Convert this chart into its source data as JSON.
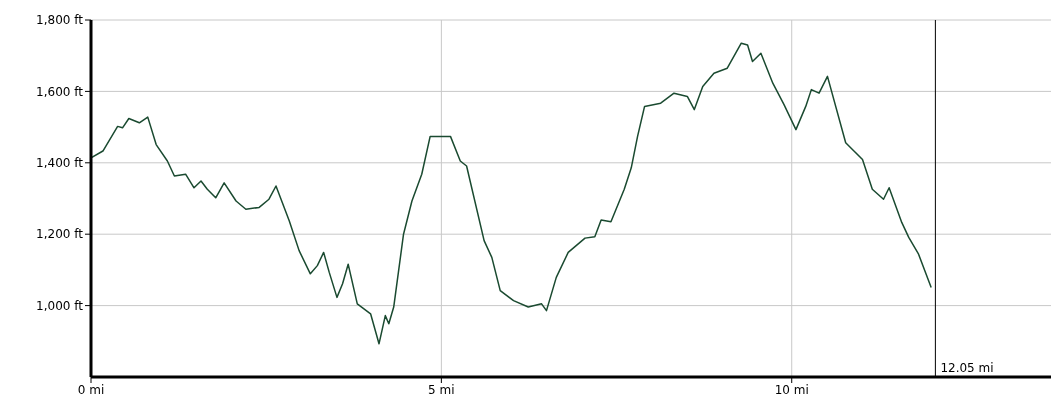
{
  "chart_data": {
    "type": "line",
    "xlim": [
      0,
      13.7
    ],
    "xticks": [
      {
        "value": 0,
        "label": "0 mi"
      },
      {
        "value": 5,
        "label": "5 mi"
      },
      {
        "value": 10,
        "label": "10 mi"
      }
    ],
    "ylim": [
      800,
      1800
    ],
    "yticks": [
      {
        "value": 1000,
        "label": "1,000 ft"
      },
      {
        "value": 1200,
        "label": "1,200 ft"
      },
      {
        "value": 1400,
        "label": "1,400 ft"
      },
      {
        "value": 1600,
        "label": "1,600 ft"
      },
      {
        "value": 1800,
        "label": "1,800 ft"
      }
    ],
    "grid": true,
    "marker": "none",
    "line_style": "solid",
    "ref_lines": [
      {
        "axis": "x",
        "value": 12.05,
        "label": "12.05 mi",
        "color": "#000000"
      }
    ],
    "series": [
      {
        "color": "#1a4a30",
        "x": [
          0,
          0.17,
          0.38,
          0.45,
          0.54,
          0.69,
          0.81,
          0.93,
          1.09,
          1.19,
          1.35,
          1.47,
          1.57,
          1.66,
          1.78,
          1.9,
          2.07,
          2.21,
          2.4,
          2.54,
          2.64,
          2.83,
          2.97,
          3.13,
          3.23,
          3.32,
          3.4,
          3.51,
          3.59,
          3.67,
          3.8,
          3.99,
          4.11,
          4.2,
          4.25,
          4.32,
          4.46,
          4.58,
          4.72,
          4.84,
          5.01,
          5.13,
          5.27,
          5.36,
          5.61,
          5.72,
          5.84,
          6.03,
          6.24,
          6.43,
          6.5,
          6.64,
          6.81,
          7.05,
          7.19,
          7.28,
          7.42,
          7.61,
          7.71,
          7.8,
          7.9,
          8.13,
          8.32,
          8.51,
          8.61,
          8.73,
          8.89,
          9.08,
          9.28,
          9.37,
          9.44,
          9.56,
          9.73,
          9.89,
          10.06,
          10.2,
          10.28,
          10.39,
          10.51,
          10.77,
          11.01,
          11.15,
          11.31,
          11.39,
          11.57,
          11.67,
          11.81,
          11.99
        ],
        "values": [
          1414,
          1433,
          1502,
          1498,
          1524,
          1512,
          1528,
          1451,
          1405,
          1363,
          1368,
          1330,
          1349,
          1326,
          1302,
          1344,
          1293,
          1270,
          1275,
          1298,
          1335,
          1237,
          1154,
          1089,
          1112,
          1149,
          1093,
          1023,
          1061,
          1116,
          1005,
          977,
          893,
          972,
          949,
          996,
          1200,
          1293,
          1368,
          1474,
          1474,
          1474,
          1405,
          1391,
          1182,
          1135,
          1042,
          1014,
          996,
          1005,
          986,
          1079,
          1149,
          1189,
          1193,
          1240,
          1235,
          1326,
          1386,
          1474,
          1558,
          1567,
          1595,
          1586,
          1549,
          1614,
          1651,
          1665,
          1735,
          1730,
          1684,
          1707,
          1623,
          1563,
          1493,
          1558,
          1605,
          1595,
          1642,
          1456,
          1409,
          1326,
          1298,
          1330,
          1233,
          1191,
          1144,
          1051
        ]
      }
    ]
  }
}
